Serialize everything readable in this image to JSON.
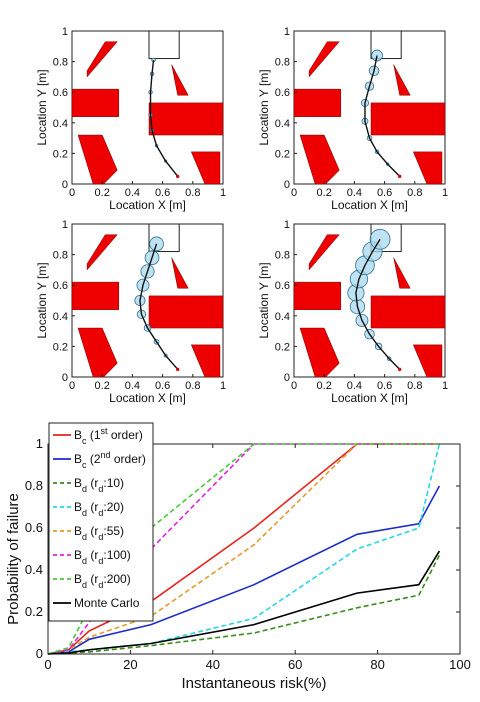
{
  "chart_data": [
    {
      "type": "scatter",
      "subplot": "top-left",
      "xlabel": "Location X [m]",
      "ylabel": "Location Y [m]",
      "xlim": [
        0,
        1
      ],
      "ylim": [
        0,
        1
      ],
      "xticks": [
        "0",
        "0.2",
        "0.4",
        "0.6",
        "0.8",
        "1"
      ],
      "yticks": [
        "0",
        "0.2",
        "0.4",
        "0.6",
        "0.8",
        "1"
      ],
      "path": {
        "x": [
          0.7,
          0.62,
          0.56,
          0.53,
          0.52,
          0.52,
          0.53,
          0.54
        ],
        "y": [
          0.05,
          0.15,
          0.25,
          0.35,
          0.45,
          0.6,
          0.72,
          0.81
        ]
      },
      "circle_radii": [
        0.004,
        0.006,
        0.008,
        0.01,
        0.012,
        0.012,
        0.012,
        0.012
      ]
    },
    {
      "type": "scatter",
      "subplot": "top-right",
      "xlabel": "Location X [m]",
      "ylabel": "Location Y [m]",
      "xlim": [
        0,
        1
      ],
      "ylim": [
        0,
        1
      ],
      "xticks": [
        "0",
        "0.2",
        "0.4",
        "0.6",
        "0.8",
        "1"
      ],
      "yticks": [
        "0",
        "0.2",
        "0.4",
        "0.6",
        "0.8",
        "1"
      ],
      "path": {
        "x": [
          0.7,
          0.62,
          0.55,
          0.5,
          0.47,
          0.47,
          0.5,
          0.53,
          0.55
        ],
        "y": [
          0.05,
          0.13,
          0.21,
          0.3,
          0.41,
          0.53,
          0.64,
          0.74,
          0.84
        ]
      },
      "circle_radii": [
        0.004,
        0.008,
        0.012,
        0.016,
        0.02,
        0.024,
        0.028,
        0.032,
        0.036
      ]
    },
    {
      "type": "scatter",
      "subplot": "bottom-left",
      "xlabel": "Location X [m]",
      "ylabel": "Location Y [m]",
      "xlim": [
        0,
        1
      ],
      "ylim": [
        0,
        1
      ],
      "xticks": [
        "0",
        "0.2",
        "0.4",
        "0.6",
        "0.8",
        "1"
      ],
      "yticks": [
        "0",
        "0.2",
        "0.4",
        "0.6",
        "0.8",
        "1"
      ],
      "path": {
        "x": [
          0.7,
          0.62,
          0.56,
          0.5,
          0.46,
          0.45,
          0.47,
          0.5,
          0.53,
          0.56
        ],
        "y": [
          0.05,
          0.14,
          0.23,
          0.32,
          0.41,
          0.5,
          0.6,
          0.69,
          0.78,
          0.87
        ]
      },
      "circle_radii": [
        0.004,
        0.01,
        0.016,
        0.022,
        0.028,
        0.034,
        0.04,
        0.044,
        0.046,
        0.046
      ]
    },
    {
      "type": "scatter",
      "subplot": "bottom-right",
      "xlabel": "Location X [m]",
      "ylabel": "Location Y [m]",
      "xlim": [
        0,
        1
      ],
      "ylim": [
        0,
        1
      ],
      "xticks": [
        "0",
        "0.2",
        "0.4",
        "0.6",
        "0.8",
        "1"
      ],
      "yticks": [
        "0",
        "0.2",
        "0.4",
        "0.6",
        "0.8",
        "1"
      ],
      "path": {
        "x": [
          0.7,
          0.63,
          0.56,
          0.5,
          0.45,
          0.42,
          0.41,
          0.43,
          0.47,
          0.52,
          0.57
        ],
        "y": [
          0.05,
          0.12,
          0.2,
          0.28,
          0.37,
          0.46,
          0.55,
          0.64,
          0.73,
          0.82,
          0.9
        ]
      },
      "circle_radii": [
        0.004,
        0.012,
        0.022,
        0.032,
        0.04,
        0.048,
        0.054,
        0.058,
        0.062,
        0.064,
        0.066
      ]
    },
    {
      "type": "line",
      "subplot": "bottom",
      "xlabel": "Instantaneous risk(%)",
      "ylabel": "Probability of failure",
      "xlim": [
        0,
        100
      ],
      "ylim": [
        0,
        1
      ],
      "xticks": [
        "0",
        "20",
        "40",
        "60",
        "80",
        "100"
      ],
      "yticks": [
        "0",
        "0.2",
        "0.4",
        "0.6",
        "0.8",
        "1"
      ],
      "legend_position": "top-left",
      "series": [
        {
          "name": "B_c (1st order)",
          "legend": {
            "main": "B",
            "sub": "c",
            "rest": " (1",
            "sup": "st",
            "tail": " order)"
          },
          "color": "#e8231b",
          "dash": "solid",
          "x": [
            0,
            5,
            10,
            25,
            50,
            75,
            90,
            95
          ],
          "y": [
            0,
            0.02,
            0.11,
            0.25,
            0.6,
            1,
            1,
            1
          ]
        },
        {
          "name": "B_c (2nd order)",
          "legend": {
            "main": "B",
            "sub": "c",
            "rest": " (2",
            "sup": "nd",
            "tail": " order)"
          },
          "color": "#1c2dcc",
          "dash": "solid",
          "x": [
            0,
            5,
            10,
            25,
            50,
            75,
            90,
            95
          ],
          "y": [
            0,
            0.01,
            0.07,
            0.14,
            0.33,
            0.57,
            0.62,
            0.8
          ]
        },
        {
          "name": "B_d (r_d:10)",
          "legend": {
            "main": "B",
            "sub": "d",
            "rest": " (r",
            "sub2": "d",
            "tail": ":10)"
          },
          "color": "#3a8c1c",
          "dash": "dashed",
          "x": [
            0,
            5,
            10,
            25,
            50,
            75,
            90,
            95
          ],
          "y": [
            0,
            0.005,
            0.01,
            0.04,
            0.1,
            0.22,
            0.28,
            0.47
          ]
        },
        {
          "name": "B_d (r_d:20)",
          "legend": {
            "main": "B",
            "sub": "d",
            "rest": " (r",
            "sub2": "d",
            "tail": ":20)"
          },
          "color": "#22d8e6",
          "dash": "dashed",
          "x": [
            0,
            5,
            10,
            25,
            50,
            75,
            90,
            95
          ],
          "y": [
            0,
            0.01,
            0.02,
            0.05,
            0.17,
            0.5,
            0.6,
            1
          ]
        },
        {
          "name": "B_d (r_d:55)",
          "legend": {
            "main": "B",
            "sub": "d",
            "rest": " (r",
            "sub2": "d",
            "tail": ":55)"
          },
          "color": "#e69a2a",
          "dash": "dashed",
          "x": [
            0,
            5,
            10,
            25,
            50,
            75,
            90,
            95
          ],
          "y": [
            0,
            0.02,
            0.08,
            0.18,
            0.52,
            1,
            1,
            1
          ]
        },
        {
          "name": "B_d (r_d:100)",
          "legend": {
            "main": "B",
            "sub": "d",
            "rest": " (r",
            "sub2": "d",
            "tail": ":100)"
          },
          "color": "#e61ee0",
          "dash": "dashed",
          "x": [
            0,
            5,
            10,
            25,
            50,
            75,
            90,
            95
          ],
          "y": [
            0,
            0.02,
            0.15,
            0.5,
            1,
            1,
            1,
            1
          ]
        },
        {
          "name": "B_d (r_d:200)",
          "legend": {
            "main": "B",
            "sub": "d",
            "rest": " (r",
            "sub2": "d",
            "tail": ":200)"
          },
          "color": "#4ac83a",
          "dash": "dashed",
          "x": [
            0,
            5,
            10,
            25,
            50,
            75,
            90,
            95
          ],
          "y": [
            0,
            0.03,
            0.22,
            0.6,
            1,
            1,
            1,
            1
          ]
        },
        {
          "name": "Monte Carlo",
          "legend": {
            "main": "Monte Carlo"
          },
          "color": "#000000",
          "dash": "solid",
          "x": [
            0,
            5,
            10,
            25,
            50,
            75,
            90,
            95
          ],
          "y": [
            0,
            0.005,
            0.02,
            0.05,
            0.14,
            0.29,
            0.33,
            0.49
          ]
        }
      ]
    }
  ]
}
